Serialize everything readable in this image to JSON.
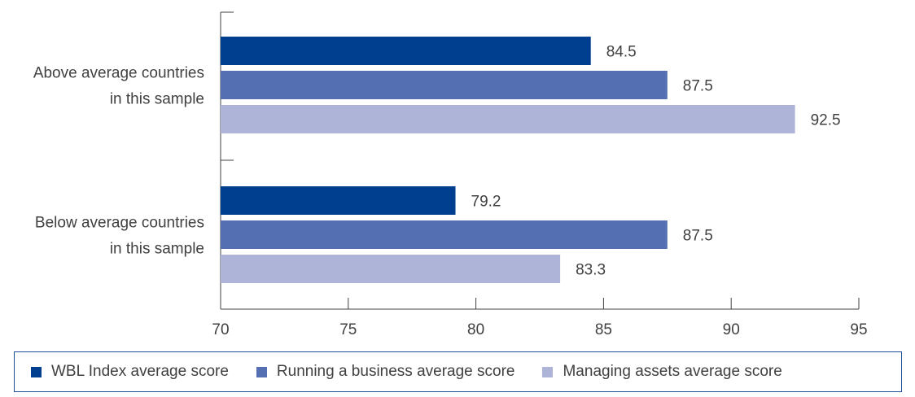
{
  "chart_data": {
    "type": "bar",
    "orientation": "horizontal",
    "categories": [
      [
        "Above average countries",
        "in this sample"
      ],
      [
        "Below average countries",
        "in this sample"
      ]
    ],
    "series": [
      {
        "name": "WBL Index average score",
        "values": [
          84.5,
          79.2
        ],
        "color": "#003f8f"
      },
      {
        "name": "Running a business average score",
        "values": [
          87.5,
          87.5
        ],
        "color": "#5570b2"
      },
      {
        "name": "Managing assets average score",
        "values": [
          92.5,
          83.3
        ],
        "color": "#adb4d8"
      }
    ],
    "data_labels": [
      [
        "84.5",
        "79.2"
      ],
      [
        "87.5",
        "87.5"
      ],
      [
        "92.5",
        "83.3"
      ]
    ],
    "xlim": [
      70,
      95
    ],
    "xticks": [
      70,
      75,
      80,
      85,
      90,
      95
    ],
    "xtick_labels": [
      "70",
      "75",
      "80",
      "85",
      "90",
      "95"
    ],
    "grid": false,
    "legend_position": "bottom",
    "title": "",
    "xlabel": "",
    "ylabel": ""
  }
}
